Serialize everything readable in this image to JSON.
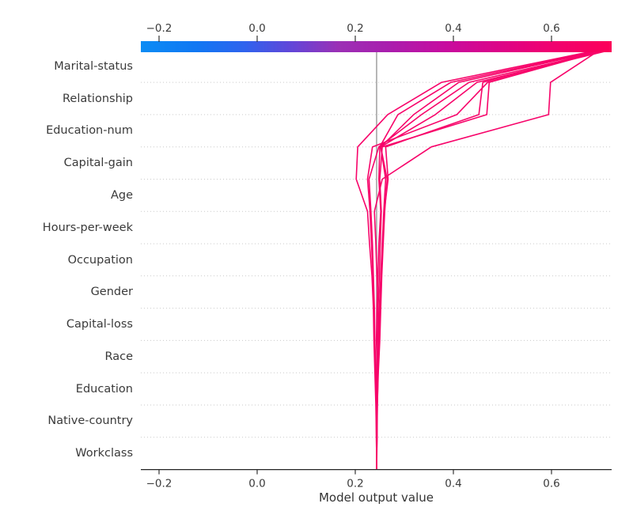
{
  "figure": {
    "background": "#ffffff"
  },
  "chart_data": {
    "type": "line",
    "subtype": "shap-decision-plot",
    "title": "",
    "xlabel": "Model output value",
    "ylabel": "",
    "features_top_to_bottom": [
      "Marital-status",
      "Relationship",
      "Education-num",
      "Capital-gain",
      "Age",
      "Hours-per-week",
      "Occupation",
      "Gender",
      "Capital-loss",
      "Race",
      "Education",
      "Native-country",
      "Workclass"
    ],
    "x_tick_values": [
      -0.2,
      0.0,
      0.2,
      0.4,
      0.6
    ],
    "x_tick_labels": [
      "−0.2",
      "0.0",
      "0.2",
      "0.4",
      "0.6"
    ],
    "xlim": [
      -0.237,
      0.723
    ],
    "base_value": 0.2435,
    "grid": "horizontal-dotted",
    "legend": "none",
    "colorbar_position": "top",
    "colors": {
      "line": "#f7046a",
      "base_value_line": "#999999",
      "gridline": "#c9c9c9",
      "axis": "#222222",
      "tick_label": "#3a3a3a",
      "colorbar_gradient": [
        {
          "offset": 0.0,
          "color": "#0c8cf4"
        },
        {
          "offset": 0.12,
          "color": "#1177f3"
        },
        {
          "offset": 0.22,
          "color": "#2f63ee"
        },
        {
          "offset": 0.32,
          "color": "#6246d8"
        },
        {
          "offset": 0.42,
          "color": "#9b30b5"
        },
        {
          "offset": 0.52,
          "color": "#a81fae"
        },
        {
          "offset": 0.64,
          "color": "#c60da0"
        },
        {
          "offset": 0.76,
          "color": "#dc0488"
        },
        {
          "offset": 0.86,
          "color": "#ef0172"
        },
        {
          "offset": 1.0,
          "color": "#fc0059"
        }
      ]
    },
    "series_note": "Each observation line: cumulative model output value at row boundaries, starting at the base value on the bottom axis and applying features bottom-to-top (Workclass first, Marital-status last).",
    "series": [
      {
        "name": "observation-1",
        "cumulative_bottom_to_top": [
          0.2435,
          0.2445,
          0.245,
          0.2465,
          0.248,
          0.246,
          0.244,
          0.242,
          0.239,
          0.255,
          0.355,
          0.594,
          0.598,
          0.698
        ]
      },
      {
        "name": "observation-2",
        "cumulative_bottom_to_top": [
          0.2435,
          0.243,
          0.2428,
          0.244,
          0.2455,
          0.2465,
          0.249,
          0.251,
          0.253,
          0.25,
          0.255,
          0.468,
          0.473,
          0.71
        ]
      },
      {
        "name": "observation-3",
        "cumulative_bottom_to_top": [
          0.2435,
          0.243,
          0.242,
          0.24,
          0.238,
          0.237,
          0.234,
          0.229,
          0.225,
          0.202,
          0.205,
          0.266,
          0.376,
          0.695
        ]
      },
      {
        "name": "observation-4",
        "cumulative_bottom_to_top": [
          0.2435,
          0.244,
          0.244,
          0.245,
          0.243,
          0.244,
          0.246,
          0.248,
          0.252,
          0.248,
          0.25,
          0.287,
          0.395,
          0.7
        ]
      },
      {
        "name": "observation-5",
        "cumulative_bottom_to_top": [
          0.2435,
          0.2432,
          0.244,
          0.246,
          0.248,
          0.249,
          0.252,
          0.255,
          0.258,
          0.262,
          0.252,
          0.319,
          0.411,
          0.705
        ]
      },
      {
        "name": "observation-6",
        "cumulative_bottom_to_top": [
          0.2435,
          0.244,
          0.243,
          0.242,
          0.24,
          0.239,
          0.237,
          0.235,
          0.232,
          0.228,
          0.248,
          0.335,
          0.432,
          0.715
        ]
      },
      {
        "name": "observation-7",
        "cumulative_bottom_to_top": [
          0.2435,
          0.244,
          0.245,
          0.247,
          0.25,
          0.252,
          0.254,
          0.257,
          0.26,
          0.265,
          0.252,
          0.363,
          0.448,
          0.72
        ]
      },
      {
        "name": "observation-8",
        "cumulative_bottom_to_top": [
          0.2435,
          0.243,
          0.243,
          0.241,
          0.239,
          0.238,
          0.236,
          0.233,
          0.23,
          0.225,
          0.235,
          0.407,
          0.47,
          0.708
        ]
      },
      {
        "name": "observation-9",
        "cumulative_bottom_to_top": [
          0.2435,
          0.244,
          0.244,
          0.246,
          0.249,
          0.25,
          0.253,
          0.256,
          0.259,
          0.267,
          0.262,
          0.452,
          0.46,
          0.702
        ]
      }
    ]
  }
}
